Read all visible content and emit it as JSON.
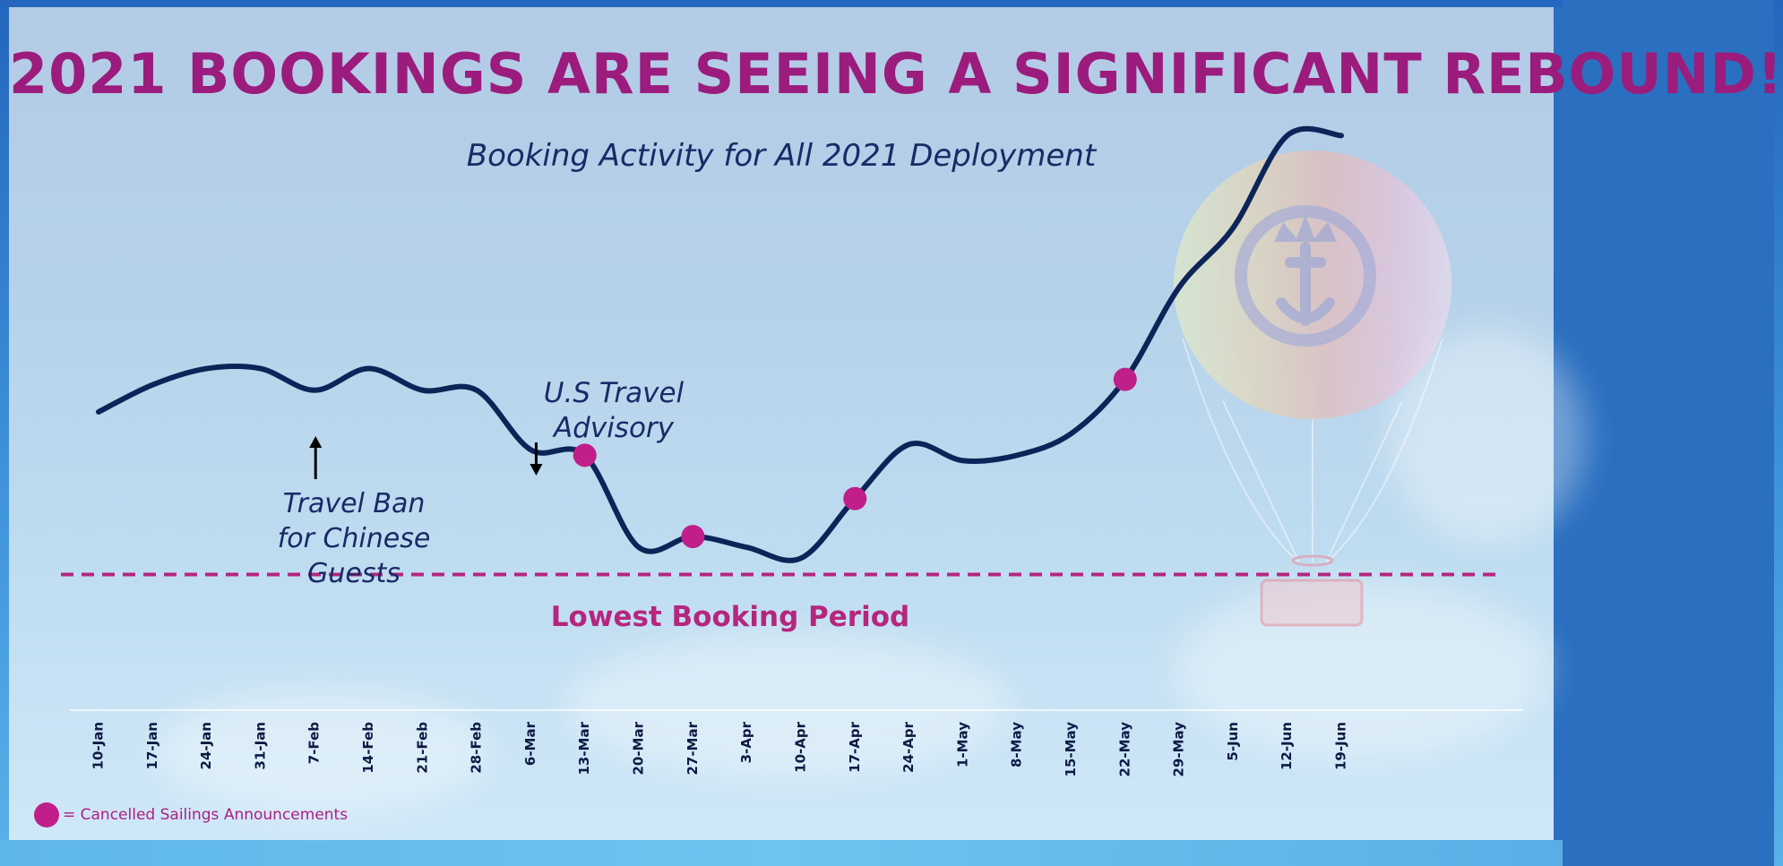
{
  "title": "2021 BOOKINGS ARE SEEING A SIGNIFICANT REBOUND!",
  "subtitle": "Booking Activity for All 2021 Deployment",
  "colors": {
    "title": "#9b1c7c",
    "line": "#0d2458",
    "marker": "#c01f89",
    "reference_line": "#b5267f",
    "annotation": "#1a2a66"
  },
  "annotations": {
    "travel_ban": [
      "Travel Ban",
      "for Chinese",
      "Guests"
    ],
    "us_advisory": [
      "U.S Travel",
      "Advisory"
    ]
  },
  "reference_line_label": "Lowest Booking Period",
  "legend": {
    "marker_icon": "filled-circle-icon",
    "label": "= Cancelled Sailings Announcements"
  },
  "chart_data": {
    "type": "line",
    "title": "Booking Activity for All 2021 Deployment",
    "xlabel": "",
    "ylabel": "",
    "y_axis_shown": false,
    "grid": false,
    "categories": [
      "10-Jan",
      "17-Jan",
      "24-Jan",
      "31-Jan",
      "7-Feb",
      "14-Feb",
      "21-Feb",
      "28-Feb",
      "6-Mar",
      "13-Mar",
      "20-Mar",
      "27-Mar",
      "3-Apr",
      "10-Apr",
      "17-Apr",
      "24-Apr",
      "1-May",
      "8-May",
      "15-May",
      "22-May",
      "29-May",
      "5-Jun",
      "12-Jun",
      "19-Jun"
    ],
    "series": [
      {
        "values": [
          41,
          46,
          49,
          49,
          45,
          49,
          45,
          45,
          34,
          33,
          16,
          18,
          16,
          14,
          25,
          35,
          32,
          33,
          37,
          47,
          64,
          75,
          92,
          92
        ]
      }
    ],
    "markers": {
      "meaning": "Cancelled Sailings Announcements",
      "categories": [
        "13-Mar",
        "27-Mar",
        "17-Apr",
        "22-May"
      ]
    },
    "reference_line": {
      "label": "Lowest Booking Period",
      "value": 11,
      "style": "dashed"
    },
    "ylim": [
      0,
      100
    ]
  }
}
